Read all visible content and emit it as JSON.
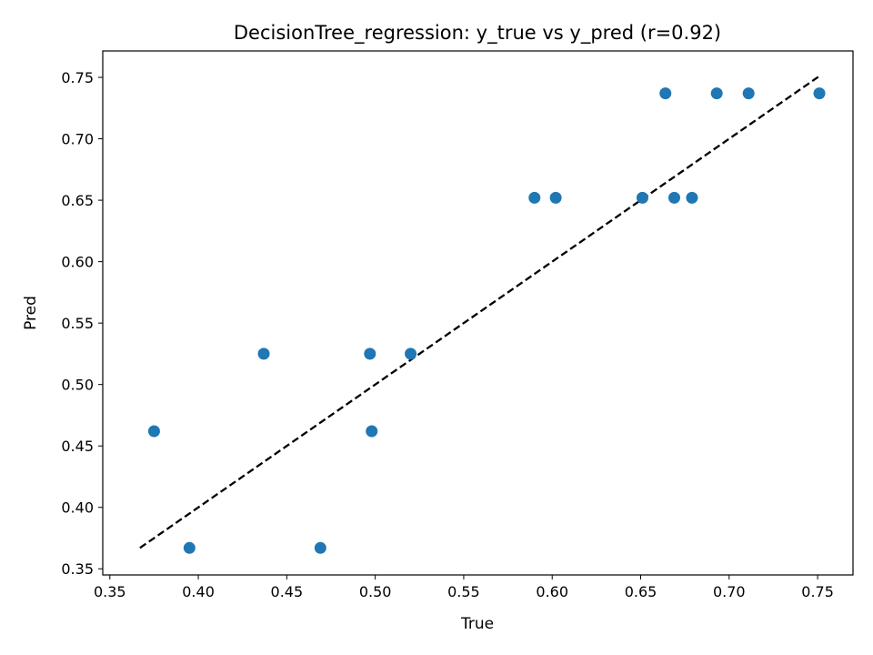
{
  "chart_data": {
    "type": "scatter",
    "title": "DecisionTree_regression: y_true vs y_pred (r=0.92)",
    "xlabel": "True",
    "ylabel": "Pred",
    "xlim": [
      0.346,
      0.77
    ],
    "ylim": [
      0.345,
      0.7715
    ],
    "xticks": [
      "0.35",
      "0.40",
      "0.45",
      "0.50",
      "0.55",
      "0.60",
      "0.65",
      "0.70",
      "0.75"
    ],
    "yticks": [
      "0.35",
      "0.40",
      "0.45",
      "0.50",
      "0.55",
      "0.60",
      "0.65",
      "0.70",
      "0.75"
    ],
    "grid": false,
    "series": [
      {
        "points": [
          {
            "x": 0.375,
            "y": 0.462
          },
          {
            "x": 0.395,
            "y": 0.367
          },
          {
            "x": 0.437,
            "y": 0.525
          },
          {
            "x": 0.469,
            "y": 0.367
          },
          {
            "x": 0.497,
            "y": 0.525
          },
          {
            "x": 0.498,
            "y": 0.462
          },
          {
            "x": 0.52,
            "y": 0.525
          },
          {
            "x": 0.59,
            "y": 0.652
          },
          {
            "x": 0.602,
            "y": 0.652
          },
          {
            "x": 0.651,
            "y": 0.652
          },
          {
            "x": 0.664,
            "y": 0.737
          },
          {
            "x": 0.669,
            "y": 0.652
          },
          {
            "x": 0.679,
            "y": 0.652
          },
          {
            "x": 0.693,
            "y": 0.737
          },
          {
            "x": 0.711,
            "y": 0.737
          },
          {
            "x": 0.751,
            "y": 0.737
          }
        ]
      }
    ],
    "reference_line": {
      "style": "dashed",
      "from": [
        0.367,
        0.367
      ],
      "to": [
        0.751,
        0.751
      ]
    },
    "colors": {
      "points": "#1f77b4",
      "reference_line": "#000000",
      "axes": "#000000"
    }
  }
}
